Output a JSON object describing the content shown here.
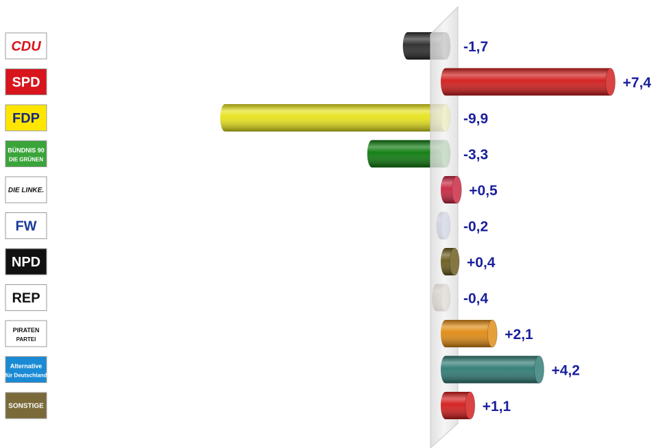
{
  "chart_data": {
    "type": "bar",
    "orientation": "horizontal",
    "baseline": 0,
    "xlim": [
      -10,
      8
    ],
    "categories": [
      "CDU",
      "SPD",
      "FDP",
      "BÜNDNIS 90 DIE GRÜNEN",
      "DIE LINKE.",
      "FW",
      "NPD",
      "REP",
      "PIRATEN PARTEI",
      "Alternative für Deutschland",
      "SONSTIGE"
    ],
    "values": [
      -1.7,
      7.4,
      -9.9,
      -3.3,
      0.5,
      -0.2,
      0.4,
      -0.4,
      2.1,
      4.2,
      1.1
    ],
    "labels": [
      "-1,7",
      "+7,4",
      "-9,9",
      "-3,3",
      "+0,5",
      "-0,2",
      "+0,4",
      "-0,4",
      "+2,1",
      "+4,2",
      "+1,1"
    ],
    "colors": [
      "#2a2a2a",
      "#d11a1a",
      "#e6e21a",
      "#0b7a0b",
      "#c8243e",
      "#6e7ec4",
      "#6a5a1a",
      "#a89070",
      "#e08a10",
      "#2e7a74",
      "#d41a1a"
    ],
    "value_label_color": "#1a1f9c",
    "grid": false,
    "legend": "none"
  },
  "logos": [
    {
      "text": "CDU",
      "bg": "#ffffff",
      "fg": "#d8141c",
      "border": "#999999"
    },
    {
      "text": "SPD",
      "bg": "#d8141c",
      "fg": "#ffffff",
      "border": "#999999"
    },
    {
      "text": "FDP",
      "sub": "",
      "bg": "#ffe600",
      "fg": "#1a2a7a",
      "border": "#999999"
    },
    {
      "text": "BÜNDNIS 90",
      "sub": "DIE GRÜNEN",
      "bg": "#3aa43a",
      "fg": "#ffffff",
      "border": "#999999"
    },
    {
      "text": "DIE LINKE.",
      "bg": "#ffffff",
      "fg": "#111111",
      "border": "#999999"
    },
    {
      "text": "FW",
      "bg": "#ffffff",
      "fg": "#1a3a9a",
      "border": "#999999"
    },
    {
      "text": "NPD",
      "bg": "#111111",
      "fg": "#ffffff",
      "border": "#999999"
    },
    {
      "text": "REP",
      "bg": "#ffffff",
      "fg": "#111111",
      "border": "#999999"
    },
    {
      "text": "PIRATEN",
      "sub": "PARTEI",
      "bg": "#ffffff",
      "fg": "#111111",
      "border": "#999999"
    },
    {
      "text": "Alternative",
      "sub": "für Deutschland",
      "bg": "#1a8ad4",
      "fg": "#ffffff",
      "border": "#999999"
    },
    {
      "text": "SONSTIGE",
      "bg": "#7a6a3a",
      "fg": "#ffffff",
      "border": "#999999"
    }
  ]
}
